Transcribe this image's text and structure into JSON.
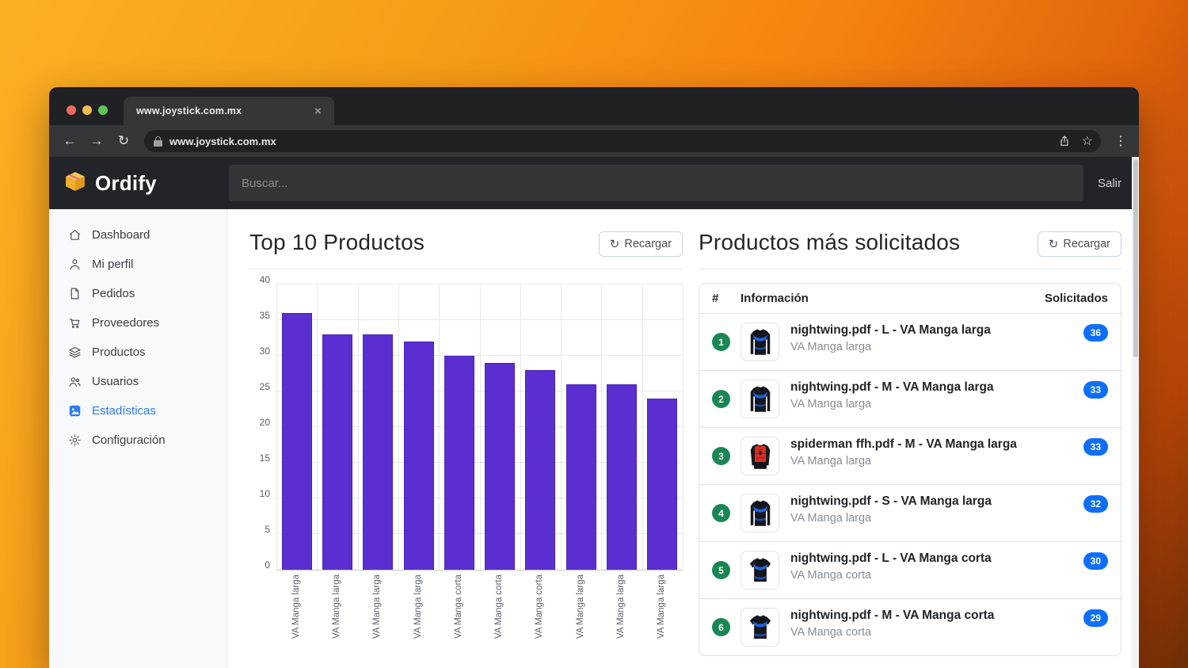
{
  "browser": {
    "tab_title": "www.joystick.com.mx",
    "url": "www.joystick.com.mx",
    "close_tab": "×",
    "back_icon": "←",
    "forward_icon": "→",
    "reload_icon": "↻",
    "star_icon": "☆",
    "kebab_icon": "⋮"
  },
  "header": {
    "brand": "Ordify",
    "brand_icon": "package-icon",
    "search_placeholder": "Buscar...",
    "logout_label": "Salir"
  },
  "sidebar": {
    "items": [
      {
        "label": "Dashboard",
        "icon": "home-icon",
        "active": false
      },
      {
        "label": "Mi perfil",
        "icon": "person-icon",
        "active": false
      },
      {
        "label": "Pedidos",
        "icon": "file-icon",
        "active": false
      },
      {
        "label": "Proveedores",
        "icon": "cart-icon",
        "active": false
      },
      {
        "label": "Productos",
        "icon": "layers-icon",
        "active": false
      },
      {
        "label": "Usuarios",
        "icon": "people-icon",
        "active": false
      },
      {
        "label": "Estadísticas",
        "icon": "image-icon",
        "active": true
      },
      {
        "label": "Configuración",
        "icon": "gear-icon",
        "active": false
      }
    ]
  },
  "left_panel": {
    "title": "Top 10 Productos",
    "reload_label": "Recargar",
    "reload_icon": "↻"
  },
  "chart_data": {
    "type": "bar",
    "title": "Top 10 Productos",
    "categories": [
      "VA Manga larga",
      "VA Manga larga",
      "VA Manga larga",
      "VA Manga larga",
      "VA Manga corta",
      "VA Manga corta",
      "VA Manga corta",
      "VA Manga larga",
      "VA Manga larga",
      "VA Manga larga"
    ],
    "values": [
      36,
      33,
      33,
      32,
      30,
      29,
      28,
      26,
      26,
      24
    ],
    "xlabel": "",
    "ylabel": "",
    "ylim": [
      0,
      40
    ],
    "ytick_step": 5,
    "grid": true,
    "legend": "none",
    "bar_color": "#5b2ed1",
    "bar_border_color": "#4a23b8"
  },
  "right_panel": {
    "title": "Productos más solicitados",
    "reload_label": "Recargar",
    "reload_icon": "↻",
    "table": {
      "headers": {
        "rank": "#",
        "info": "Información",
        "count": "Solicitados"
      },
      "rows": [
        {
          "rank": "1",
          "title": "nightwing.pdf - L - VA Manga larga",
          "subtitle": "VA Manga larga",
          "count": "36",
          "image": "nightwing-long-sleeve-shirt"
        },
        {
          "rank": "2",
          "title": "nightwing.pdf - M - VA Manga larga",
          "subtitle": "VA Manga larga",
          "count": "33",
          "image": "nightwing-long-sleeve-shirt"
        },
        {
          "rank": "3",
          "title": "spiderman ffh.pdf - M - VA Manga larga",
          "subtitle": "VA Manga larga",
          "count": "33",
          "image": "spiderman-long-sleeve-shirt"
        },
        {
          "rank": "4",
          "title": "nightwing.pdf - S - VA Manga larga",
          "subtitle": "VA Manga larga",
          "count": "32",
          "image": "nightwing-long-sleeve-shirt"
        },
        {
          "rank": "5",
          "title": "nightwing.pdf - L - VA Manga corta",
          "subtitle": "VA Manga corta",
          "count": "30",
          "image": "nightwing-short-sleeve-shirt"
        },
        {
          "rank": "6",
          "title": "nightwing.pdf - M - VA Manga corta",
          "subtitle": "VA Manga corta",
          "count": "29",
          "image": "nightwing-short-sleeve-shirt"
        }
      ]
    }
  },
  "colors": {
    "accent_blue": "#0d6efd",
    "success_green": "#198754",
    "bar_purple": "#5b2ed1",
    "sidebar_active": "#2e7cf6",
    "chrome_dark": "#202124",
    "app_header_dark": "#212529",
    "bg_gradient_from": "#f9b124",
    "bg_gradient_to": "#6e2d06"
  }
}
